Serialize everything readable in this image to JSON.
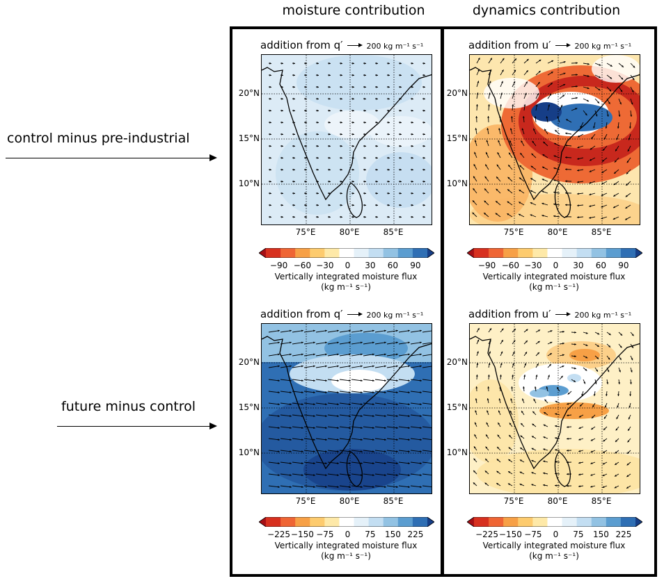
{
  "column_titles": [
    "moisture contribution",
    "dynamics contribution"
  ],
  "row_labels": [
    "control minus pre-industrial",
    "future minus control"
  ],
  "panel_titles": {
    "moisture": "addition from q′",
    "dynamics": "addition from u′",
    "reference_vector": "200 kg m⁻¹ s⁻¹"
  },
  "map_axes": {
    "lat_labels": [
      "20°N",
      "15°N",
      "10°N"
    ],
    "lon_labels": [
      "75°E",
      "80°E",
      "85°E"
    ]
  },
  "colorbars": {
    "label_line1": "Vertically integrated moisture flux",
    "label_line2": "(kg m⁻¹ s⁻¹)",
    "top_ticks": [
      "−90",
      "−60",
      "−30",
      "0",
      "30",
      "60",
      "90"
    ],
    "bottom_ticks": [
      "−225",
      "−150",
      "−75",
      "0",
      "75",
      "150",
      "225"
    ],
    "colors": [
      "#a50f15",
      "#d7301f",
      "#ef6534",
      "#f7a046",
      "#fdcb6e",
      "#fee9a8",
      "#ffffff",
      "#e5f1f9",
      "#c3def2",
      "#92c2e3",
      "#5b9dd0",
      "#2f6fb4",
      "#163e87"
    ]
  },
  "chart_data": [
    {
      "type": "heatmap",
      "panel": "control minus pre-industrial / moisture contribution",
      "title": "addition from q′",
      "colorbar_range": [
        -90,
        90
      ],
      "pattern": "weak positive flux (≈10–30) across domain",
      "vector_scale": "200 kg m⁻¹ s⁻¹"
    },
    {
      "type": "heatmap",
      "panel": "control minus pre-industrial / dynamics contribution",
      "title": "addition from u′",
      "colorbar_range": [
        -90,
        90
      ],
      "pattern": "strong negative (≈ −60 to −90) ring around positive (≈ +60 to +90) core near 17–19°N",
      "vector_scale": "200 kg m⁻¹ s⁻¹"
    },
    {
      "type": "heatmap",
      "panel": "future minus control / moisture contribution",
      "title": "addition from q′",
      "colorbar_range": [
        -225,
        225
      ],
      "pattern": "large positive flux (≈150–225) south of 18°N, weaker near 18–19°N",
      "vector_scale": "200 kg m⁻¹ s⁻¹"
    },
    {
      "type": "heatmap",
      "panel": "future minus control / dynamics contribution",
      "title": "addition from u′",
      "colorbar_range": [
        -225,
        225
      ],
      "pattern": "weak negative (≈ −40 to −100) background with small positive core near 16–17°N",
      "vector_scale": "200 kg m⁻¹ s⁻¹"
    }
  ]
}
